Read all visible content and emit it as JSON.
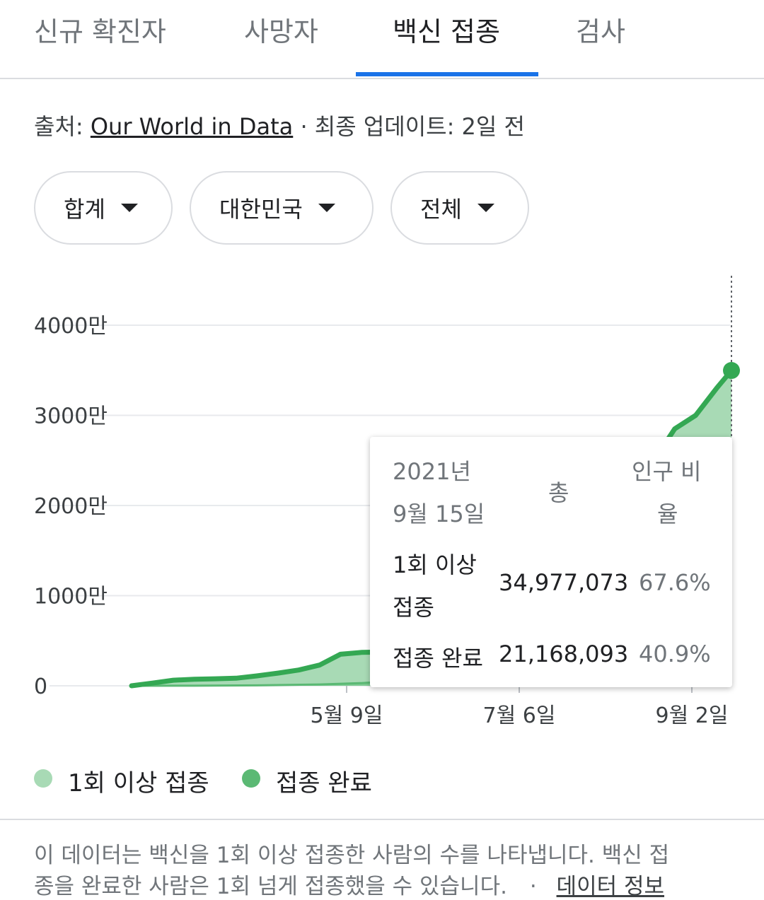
{
  "tabs": [
    {
      "label": "신규 확진자"
    },
    {
      "label": "사망자"
    },
    {
      "label": "백신 접종"
    },
    {
      "label": "검사"
    }
  ],
  "source": {
    "prefix": "출처: ",
    "link": "Our World in Data",
    "suffix": " · 최종 업데이트: 2일 전"
  },
  "chips": [
    {
      "label": "합계"
    },
    {
      "label": "대한민국"
    },
    {
      "label": "전체"
    }
  ],
  "colors": {
    "accent": "#1a73e8",
    "at_least_one": "#a8dab5",
    "fully": "#34a853"
  },
  "chart_data": {
    "type": "area",
    "y_ticks": [
      "4000만",
      "3000만",
      "2000만",
      "1000만",
      "0"
    ],
    "y_tick_values": [
      40000000,
      30000000,
      20000000,
      10000000,
      0
    ],
    "x_ticks": [
      "5월 9일",
      "7월 6일",
      "9월 2일"
    ],
    "ylim": [
      0,
      40000000
    ],
    "series": [
      {
        "name": "1회 이상 접종",
        "x": [
          "2021-02-26",
          "2021-03-05",
          "2021-03-12",
          "2021-03-19",
          "2021-03-26",
          "2021-04-02",
          "2021-04-09",
          "2021-04-16",
          "2021-04-23",
          "2021-04-30",
          "2021-05-07",
          "2021-05-14",
          "2021-05-21",
          "2021-05-28",
          "2021-06-04",
          "2021-06-11",
          "2021-06-18",
          "2021-06-25",
          "2021-07-02",
          "2021-07-09",
          "2021-07-16",
          "2021-07-23",
          "2021-07-30",
          "2021-08-06",
          "2021-08-13",
          "2021-08-20",
          "2021-08-27",
          "2021-09-03",
          "2021-09-10",
          "2021-09-15"
        ],
        "values": [
          0,
          300000,
          620000,
          720000,
          780000,
          840000,
          1100000,
          1400000,
          1750000,
          2300000,
          3500000,
          3700000,
          3750000,
          3800000,
          7000000,
          12000000,
          14200000,
          15000000,
          15300000,
          15500000,
          15800000,
          16300000,
          18000000,
          20000000,
          22500000,
          25000000,
          28500000,
          30000000,
          33000000,
          34977073
        ]
      },
      {
        "name": "접종 완료",
        "x": [
          "2021-02-26",
          "2021-03-19",
          "2021-04-09",
          "2021-04-30",
          "2021-05-14",
          "2021-05-28",
          "2021-06-11",
          "2021-06-25",
          "2021-07-09",
          "2021-07-23",
          "2021-08-06",
          "2021-08-20",
          "2021-09-03",
          "2021-09-15"
        ],
        "values": [
          0,
          10000,
          50000,
          150000,
          300000,
          600000,
          900000,
          1500000,
          2500000,
          3800000,
          6500000,
          9500000,
          16000000,
          21168093
        ]
      }
    ]
  },
  "tooltip": {
    "date_line1": "2021년",
    "date_line2": "9월 15일",
    "col_total": "총",
    "col_ratio_line1": "인구 비",
    "col_ratio_line2": "율",
    "row1_label_line1": "1회 이상",
    "row1_label_line2": "접종",
    "row1_total": "34,977,073",
    "row1_ratio": "67.6%",
    "row2_label": "접종 완료",
    "row2_total": "21,168,093",
    "row2_ratio": "40.9%"
  },
  "legend": [
    {
      "label": "1회 이상 접종"
    },
    {
      "label": "접종 완료"
    }
  ],
  "note": {
    "line1": "이 데이터는 백신을 1회 이상 접종한 사람의 수를 나타냅니다. 백신 접",
    "line2": "종을 완료한 사람은 1회 넘게 접종했을 수 있습니다.",
    "separator": "·",
    "link": "데이터 정보"
  }
}
